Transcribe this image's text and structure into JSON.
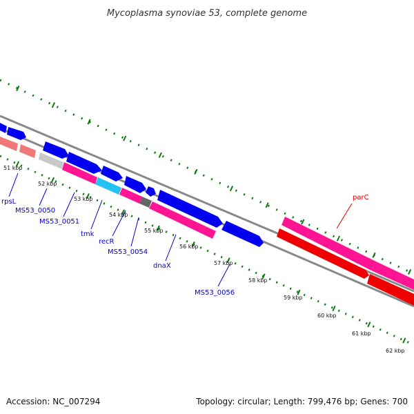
{
  "title": "Mycoplasma synoviae 53, complete genome",
  "accession": "Accession: NC_007294",
  "summary": "Topology: circular; Length: 799,476 bp; Genes: 700",
  "kbp_labels": [
    "51 kbp",
    "52 kbp",
    "53 kbp",
    "54 kbp",
    "55 kbp",
    "56 kbp",
    "57 kbp",
    "58 kbp",
    "59 kbp",
    "60 kbp",
    "61 kbp",
    "62 kbp"
  ],
  "gene_labels": [
    {
      "name": "rpsL",
      "color": "#0000cc"
    },
    {
      "name": "MS53_0050",
      "color": "#0000cc"
    },
    {
      "name": "MS53_0051",
      "color": "#0000cc"
    },
    {
      "name": "tmk",
      "color": "#0000cc"
    },
    {
      "name": "recR",
      "color": "#0000cc"
    },
    {
      "name": "MS53_0054",
      "color": "#0000cc"
    },
    {
      "name": "dnaX",
      "color": "#0000cc"
    },
    {
      "name": "MS53_0056",
      "color": "#0000cc"
    },
    {
      "name": "parC",
      "color": "#dd0000"
    }
  ],
  "colors": {
    "backbone": "#888888",
    "tick": "#0a7a0a",
    "cds_blue": "#0000ee",
    "cds_magenta": "#ff1493",
    "cds_red": "#ee0000",
    "cds_salmon": "#f07878",
    "cds_gray": "#c8c8c8",
    "cds_cyan": "#22c3f0",
    "cds_dark": "#666666"
  }
}
